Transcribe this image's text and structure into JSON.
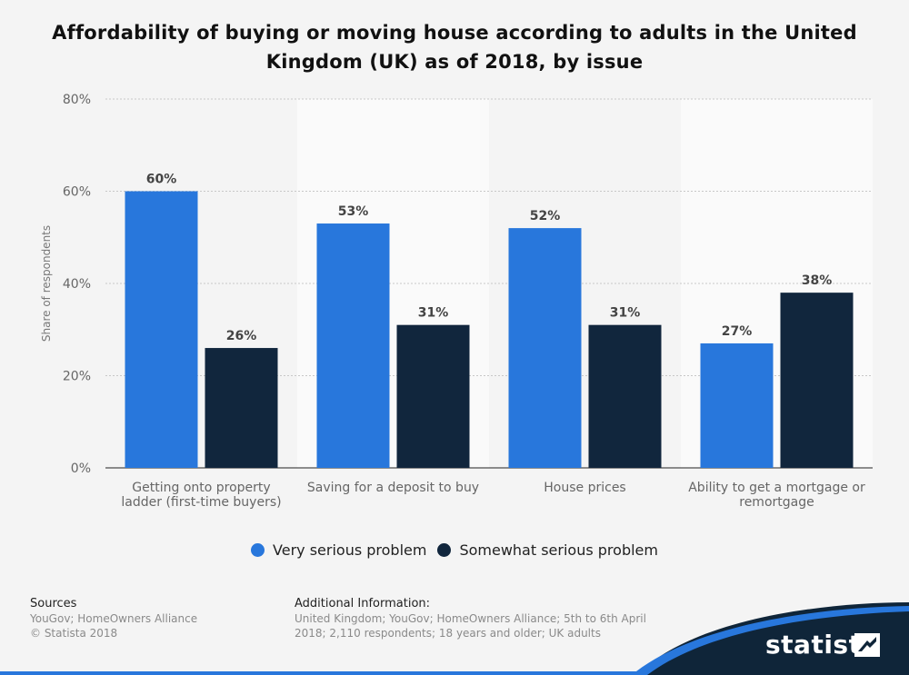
{
  "title": "Affordability of buying or moving house according to adults in the United Kingdom (UK) as of 2018, by issue",
  "colors": {
    "very_serious": "#2877dc",
    "somewhat_serious": "#11263d",
    "band": "#fafafa",
    "grid": "#c8c8c8",
    "axis_text": "#666666",
    "label_text": "#444444"
  },
  "chart_data": {
    "type": "bar",
    "title": "Affordability of buying or moving house according to adults in the United Kingdom (UK) as of 2018, by issue",
    "ylabel": "Share of respondents",
    "xlabel": "",
    "ylim": [
      0,
      80
    ],
    "yticks": [
      "0%",
      "20%",
      "40%",
      "60%",
      "80%"
    ],
    "grid": true,
    "legend_position": "bottom",
    "categories": [
      [
        "Getting onto property",
        "ladder (first-time buyers)"
      ],
      [
        "Saving for a deposit to buy"
      ],
      [
        "House prices"
      ],
      [
        "Ability to get a mortgage or",
        "remortgage"
      ]
    ],
    "series": [
      {
        "name": "Very serious problem",
        "values": [
          60,
          53,
          52,
          27
        ],
        "labels": [
          "60%",
          "53%",
          "52%",
          "27%"
        ]
      },
      {
        "name": "Somewhat serious problem",
        "values": [
          26,
          31,
          31,
          38
        ],
        "labels": [
          "26%",
          "31%",
          "31%",
          "38%"
        ]
      }
    ]
  },
  "legend": {
    "very_serious": "Very serious problem",
    "somewhat_serious": "Somewhat serious problem"
  },
  "footer": {
    "sources_heading": "Sources",
    "sources_line1": "YouGov; HomeOwners Alliance",
    "sources_line2": "© Statista 2018",
    "additional_heading": "Additional Information:",
    "additional_line1": "United Kingdom; YouGov; HomeOwners Alliance; 5th to 6th April",
    "additional_line2": "2018; 2,110 respondents; 18 years and older; UK adults"
  },
  "brand": {
    "name": "statista",
    "icon": "statista-logo-icon"
  }
}
